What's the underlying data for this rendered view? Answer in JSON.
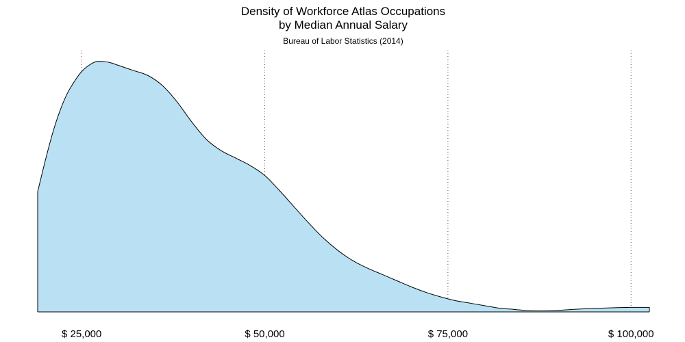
{
  "chart_data": {
    "type": "area",
    "title_lines": [
      "Density of Workforce Atlas Occupations",
      "by Median Annual Salary"
    ],
    "subtitle": "Bureau of Labor Statistics (2014)",
    "xlabel": "",
    "ylabel": "",
    "xlim": [
      19000,
      102500
    ],
    "ylim": [
      0,
      1.0
    ],
    "grid": {
      "x": true,
      "y": false,
      "style": "dotted"
    },
    "x_ticks": [
      25000,
      50000,
      75000,
      100000
    ],
    "x_tick_labels": [
      "$ 25,000",
      "$ 50,000",
      "$ 75,000",
      "$ 100,000"
    ],
    "fill_color": "#b9e1f3",
    "line_color": "#000000",
    "series": [
      {
        "x": [
          19000,
          20000,
          21000,
          22000,
          23000,
          24000,
          25000,
          26000,
          27000,
          28000,
          29000,
          30000,
          32000,
          34000,
          36000,
          38000,
          40000,
          42000,
          44000,
          46000,
          48000,
          50000,
          52000,
          54000,
          56000,
          58000,
          60000,
          62000,
          64000,
          66000,
          68000,
          70000,
          72000,
          74000,
          76000,
          78000,
          80000,
          82000,
          84000,
          86000,
          88000,
          90000,
          92000,
          94000,
          96000,
          98000,
          100000,
          102000,
          102500
        ],
        "y": [
          0.48,
          0.6,
          0.71,
          0.8,
          0.87,
          0.92,
          0.96,
          0.985,
          1.0,
          1.0,
          0.995,
          0.985,
          0.965,
          0.945,
          0.905,
          0.84,
          0.76,
          0.69,
          0.645,
          0.615,
          0.585,
          0.545,
          0.485,
          0.42,
          0.355,
          0.295,
          0.245,
          0.205,
          0.175,
          0.15,
          0.125,
          0.1,
          0.078,
          0.06,
          0.045,
          0.035,
          0.025,
          0.015,
          0.01,
          0.005,
          0.004,
          0.006,
          0.01,
          0.013,
          0.015,
          0.017,
          0.018,
          0.018,
          0.018
        ]
      }
    ]
  }
}
